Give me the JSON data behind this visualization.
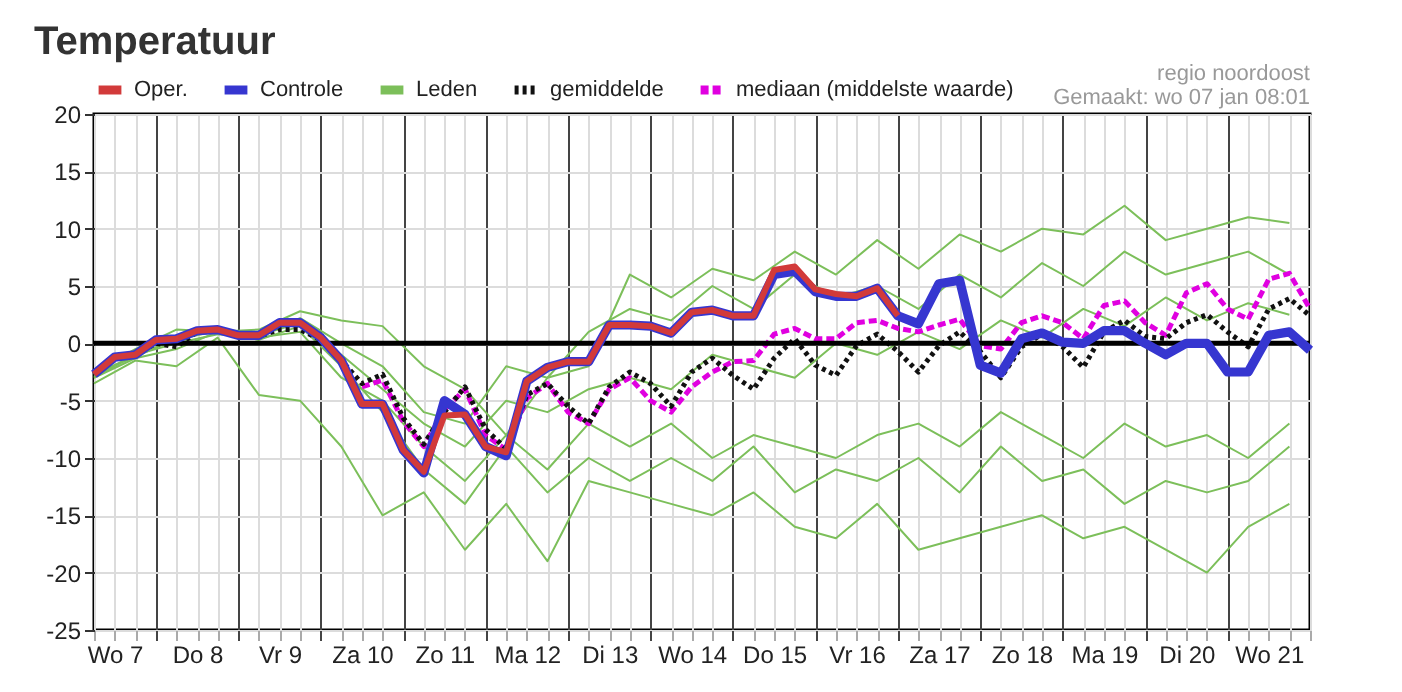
{
  "chart_data": {
    "type": "line",
    "title": "Temperatuur",
    "annotations": [
      "regio noordoost",
      "Gemaakt: wo 07 jan 08:01"
    ],
    "categories": [
      null,
      "Wo 7",
      null,
      null,
      null,
      "Do 8",
      null,
      null,
      null,
      "Vr 9",
      null,
      null,
      null,
      "Za 10",
      null,
      null,
      null,
      "Zo 11",
      null,
      null,
      null,
      "Ma 12",
      null,
      null,
      null,
      "Di 13",
      null,
      null,
      null,
      "Wo 14",
      null,
      null,
      null,
      "Do 15",
      null,
      null,
      null,
      "Vr 16",
      null,
      null,
      null,
      "Za 17",
      null,
      null,
      null,
      "Zo 18",
      null,
      null,
      null,
      "Ma 19",
      null,
      null,
      null,
      "Di 20",
      null,
      null,
      null,
      "Wo 21",
      null,
      null
    ],
    "ylim": [
      -25,
      20
    ],
    "yticks": [
      -25,
      -20,
      -15,
      -10,
      -5,
      0,
      5,
      10,
      15,
      20
    ],
    "grid": true,
    "legend": "top left",
    "ref_lines": [
      {
        "axis": "y",
        "value": 0
      }
    ],
    "series": [
      {
        "name": "Oper.",
        "color": "#d23a3a",
        "values": [
          -2.7,
          -1.2,
          -1.0,
          0.3,
          0.4,
          1.1,
          1.2,
          0.7,
          0.7,
          1.8,
          1.8,
          0.5,
          -1.5,
          -5.3,
          -5.3,
          -9.3,
          -11.2,
          -6.3,
          -6.2,
          -9.0,
          -9.5,
          -3.3,
          -2.1,
          -1.6,
          -1.6,
          1.6,
          1.6,
          1.5,
          0.9,
          2.7,
          2.9,
          2.4,
          2.4,
          6.4,
          6.7,
          4.7,
          4.3,
          4.1,
          4.8,
          2.4,
          null,
          null,
          null,
          null,
          null,
          null,
          null,
          null,
          null,
          null,
          null,
          null,
          null,
          null,
          null,
          null,
          null,
          null,
          null,
          null
        ]
      },
      {
        "name": "Controle",
        "color": "#3636d0",
        "values": [
          -2.7,
          -1.2,
          -1.0,
          0.3,
          0.4,
          1.1,
          1.2,
          0.7,
          0.7,
          1.8,
          1.8,
          0.5,
          -1.5,
          -5.3,
          -5.3,
          -9.3,
          -11.3,
          -5.0,
          -6.2,
          -9.0,
          -9.8,
          -3.3,
          -2.1,
          -1.6,
          -1.6,
          1.6,
          1.6,
          1.5,
          0.9,
          2.7,
          2.9,
          2.4,
          2.4,
          6.0,
          6.3,
          4.5,
          4.1,
          4.1,
          4.8,
          2.4,
          1.7,
          5.2,
          5.5,
          -1.9,
          -2.6,
          0.4,
          0.9,
          0.1,
          0,
          1.1,
          1.1,
          0,
          -1.0,
          0,
          0,
          -2.5,
          -2.5,
          0.7,
          1.0,
          -0.6
        ]
      },
      {
        "name": "Leden",
        "color": "#7cbf5a",
        "values": [
          -2.5,
          null,
          -0.5,
          null,
          1.2,
          null,
          1.0,
          null,
          1.2,
          null,
          2.8,
          null,
          2.0,
          null,
          1.5,
          null,
          -2.0,
          null,
          -4.0,
          null,
          -8.0,
          null,
          -3.0,
          null,
          -2.0,
          null,
          6.0,
          null,
          4.0,
          null,
          6.5,
          null,
          5.5,
          null,
          8.0,
          null,
          6.0,
          null,
          9.0,
          null,
          6.5,
          null,
          9.5,
          null,
          8.0,
          null,
          10.0,
          null,
          9.5,
          null,
          12.0,
          null,
          9.0,
          null,
          10.0,
          null,
          11.0,
          null,
          10.5,
          null
        ]
      },
      {
        "color": "#7cbf5a",
        "values": [
          -3.5,
          null,
          -1.5,
          null,
          -2.0,
          null,
          0.5,
          null,
          -4.5,
          null,
          -5.0,
          null,
          -9.0,
          null,
          -15.0,
          null,
          -13.0,
          null,
          -18.0,
          null,
          -14.0,
          null,
          -19.0,
          null,
          -12.0,
          null,
          -13.0,
          null,
          -14.0,
          null,
          -15.0,
          null,
          -13.0,
          null,
          -16.0,
          null,
          -17.0,
          null,
          -14.0,
          null,
          -18.0,
          null,
          -17.0,
          null,
          -16.0,
          null,
          -15.0,
          null,
          -17.0,
          null,
          -16.0,
          null,
          -18.0,
          null,
          -20.0,
          null,
          -16.0,
          null,
          -14.0,
          null
        ]
      },
      {
        "color": "#7cbf5a",
        "values": [
          -3.0,
          null,
          -1.0,
          null,
          0.0,
          null,
          0.8,
          null,
          0.5,
          null,
          1.0,
          null,
          -3.0,
          null,
          -5.0,
          null,
          -9.0,
          null,
          -12.0,
          null,
          -8.0,
          null,
          -11.0,
          null,
          -7.0,
          null,
          -9.0,
          null,
          -7.0,
          null,
          -10.0,
          null,
          -8.0,
          null,
          -9.0,
          null,
          -10.0,
          null,
          -8.0,
          null,
          -7.0,
          null,
          -9.0,
          null,
          -6.0,
          null,
          -8.0,
          null,
          -10.0,
          null,
          -7.0,
          null,
          -9.0,
          null,
          -8.0,
          null,
          -10.0,
          null,
          -7.0,
          null
        ]
      },
      {
        "color": "#7cbf5a",
        "values": [
          -2.8,
          null,
          -1.0,
          null,
          0.3,
          null,
          1.1,
          null,
          0.7,
          null,
          1.8,
          null,
          -1.0,
          null,
          -4.0,
          null,
          -7.0,
          null,
          -9.0,
          null,
          -5.0,
          null,
          -6.0,
          null,
          -4.0,
          null,
          -3.0,
          null,
          -4.0,
          null,
          -1.0,
          null,
          -2.0,
          null,
          -3.0,
          null,
          0.0,
          null,
          -1.0,
          null,
          1.0,
          null,
          -0.5,
          null,
          2.0,
          null,
          0.5,
          null,
          3.0,
          null,
          1.5,
          null,
          4.0,
          null,
          2.0,
          null,
          3.5,
          null,
          2.5,
          null
        ]
      },
      {
        "color": "#7cbf5a",
        "values": [
          -2.6,
          null,
          -1.2,
          null,
          0.5,
          null,
          1.3,
          null,
          0.8,
          null,
          2.2,
          null,
          0.0,
          null,
          -2.0,
          null,
          -6.0,
          null,
          -7.0,
          null,
          -2.0,
          null,
          -3.0,
          null,
          1.0,
          null,
          3.0,
          null,
          2.0,
          null,
          5.0,
          null,
          3.0,
          null,
          6.0,
          null,
          4.0,
          null,
          5.0,
          null,
          3.0,
          null,
          6.0,
          null,
          4.0,
          null,
          7.0,
          null,
          5.0,
          null,
          8.0,
          null,
          6.0,
          null,
          7.0,
          null,
          8.0,
          null,
          6.0,
          null
        ]
      },
      {
        "color": "#7cbf5a",
        "values": [
          -3.0,
          null,
          -1.3,
          null,
          -0.5,
          null,
          1.0,
          null,
          0.3,
          null,
          1.5,
          null,
          -2.0,
          null,
          -6.0,
          null,
          -11.0,
          null,
          -14.0,
          null,
          -9.0,
          null,
          -13.0,
          null,
          -10.0,
          null,
          -12.0,
          null,
          -10.0,
          null,
          -12.0,
          null,
          -9.0,
          null,
          -13.0,
          null,
          -11.0,
          null,
          -12.0,
          null,
          -10.0,
          null,
          -13.0,
          null,
          -9.0,
          null,
          -12.0,
          null,
          -11.0,
          null,
          -14.0,
          null,
          -12.0,
          null,
          -13.0,
          null,
          -12.0,
          null,
          -9.0,
          null
        ]
      },
      {
        "name": "gemiddelde",
        "color": "#111111",
        "line_style": "dotted",
        "values": [
          -2.7,
          -1.2,
          -1.0,
          0,
          -0.3,
          1.0,
          1.1,
          0.6,
          0.6,
          1.2,
          1.2,
          0.3,
          -1.5,
          -3.5,
          -2.7,
          -6.5,
          -8.8,
          -6.0,
          -3.8,
          -7.5,
          -9.2,
          -4.5,
          -3.5,
          -5.5,
          -7.0,
          -3.8,
          -2.5,
          -3.5,
          -5.5,
          -2.5,
          -1.3,
          -2.8,
          -4.0,
          -1.3,
          0.4,
          -1.9,
          -2.8,
          -0.2,
          0.8,
          -0.7,
          -2.5,
          -0.2,
          1.0,
          -0.7,
          -3.0,
          -0.3,
          0.8,
          -0.3,
          -2.1,
          1.0,
          2.0,
          0.6,
          0.4,
          1.8,
          2.5,
          1.0,
          -0.3,
          3.0,
          3.9,
          2.4
        ]
      },
      {
        "name": "mediaan (middelste waarde)",
        "color": "#e000e0",
        "line_style": "dashed",
        "values": [
          null,
          null,
          null,
          null,
          null,
          null,
          null,
          null,
          null,
          null,
          null,
          null,
          null,
          -3.8,
          -3.2,
          -6.8,
          -9.0,
          -5.8,
          -4.0,
          -8.0,
          -9.3,
          -4.8,
          -3.5,
          -6.0,
          -7.0,
          -4.0,
          -3.0,
          -5.0,
          -6.0,
          -3.8,
          -2.5,
          -1.6,
          -1.5,
          0.8,
          1.3,
          0.4,
          0.4,
          1.8,
          2.0,
          1.3,
          1.0,
          1.6,
          2.1,
          -0.2,
          -0.5,
          1.8,
          2.4,
          1.8,
          0.4,
          3.3,
          3.7,
          1.8,
          0.7,
          4.4,
          5.2,
          3.0,
          2.1,
          5.6,
          6.1,
          3.0
        ]
      }
    ]
  }
}
